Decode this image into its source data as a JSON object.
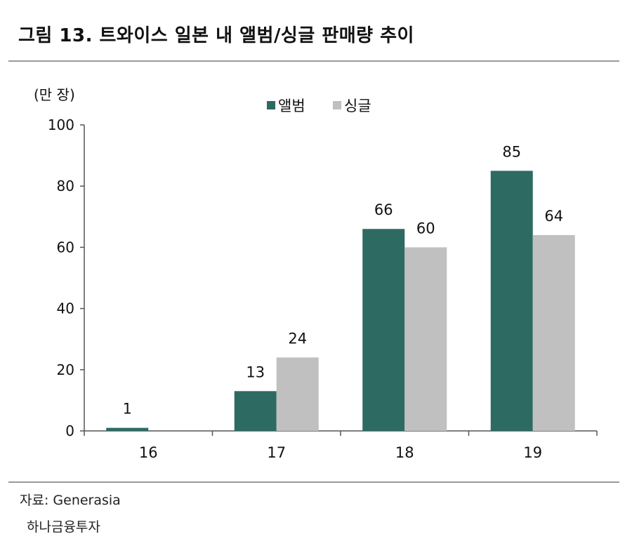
{
  "figure": {
    "title": "그림 13. 트와이스 일본 내 앨범/싱글 판매량 추이"
  },
  "colors": {
    "album": "#2d6a62",
    "single": "#c0c0c0",
    "rule": "#9a9a9a",
    "axis": "#555555"
  },
  "source": {
    "line1": "자료: Generasia",
    "line2": "하나금융투자"
  },
  "chart_data": {
    "type": "bar",
    "categories": [
      "16",
      "17",
      "18",
      "19"
    ],
    "series": [
      {
        "name": "앨범",
        "values": [
          1,
          13,
          66,
          85
        ]
      },
      {
        "name": "싱글",
        "values": [
          null,
          24,
          60,
          64
        ]
      }
    ],
    "data_labels": [
      [
        "1",
        "13",
        "66",
        "85"
      ],
      [
        "",
        "24",
        "60",
        "64"
      ]
    ],
    "unit_label": "(만 장)",
    "xlabel": "",
    "ylabel": "",
    "ylim": [
      0,
      100
    ],
    "yticks": [
      0,
      20,
      40,
      60,
      80,
      100
    ],
    "legend_position": "top-center",
    "grid": false
  }
}
